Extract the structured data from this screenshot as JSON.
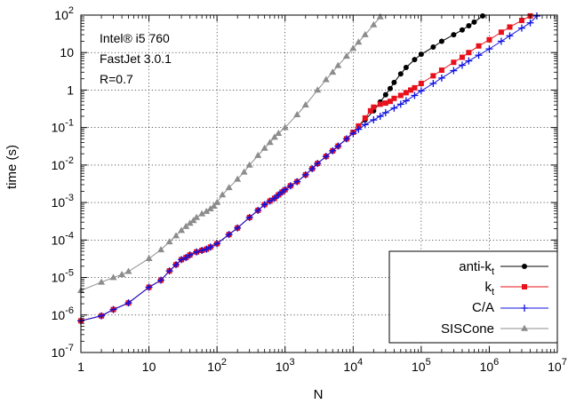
{
  "chart_data": {
    "type": "line",
    "xlabel": "N",
    "ylabel": "time (s)",
    "xscale": "log",
    "yscale": "log",
    "xlim": [
      1,
      10000000
    ],
    "ylim": [
      1e-07,
      100
    ],
    "grid": true,
    "legend_position": "bottom-right",
    "annotations": [
      "Intel® i5 760",
      "FastJet 3.0.1",
      "R=0.7"
    ],
    "x_ticks": [
      {
        "value": 1,
        "base": "1",
        "exp": ""
      },
      {
        "value": 10,
        "base": "10",
        "exp": ""
      },
      {
        "value": 100,
        "base": "10",
        "exp": "2"
      },
      {
        "value": 1000,
        "base": "10",
        "exp": "3"
      },
      {
        "value": 10000,
        "base": "10",
        "exp": "4"
      },
      {
        "value": 100000,
        "base": "10",
        "exp": "5"
      },
      {
        "value": 1000000,
        "base": "10",
        "exp": "6"
      },
      {
        "value": 10000000,
        "base": "10",
        "exp": "7"
      }
    ],
    "y_ticks": [
      {
        "value": 1e-07,
        "base": "10",
        "exp": "-7"
      },
      {
        "value": 1e-06,
        "base": "10",
        "exp": "-6"
      },
      {
        "value": 1e-05,
        "base": "10",
        "exp": "-5"
      },
      {
        "value": 0.0001,
        "base": "10",
        "exp": "-4"
      },
      {
        "value": 0.001,
        "base": "10",
        "exp": "-3"
      },
      {
        "value": 0.01,
        "base": "10",
        "exp": "-2"
      },
      {
        "value": 0.1,
        "base": "10",
        "exp": "-1"
      },
      {
        "value": 1,
        "base": "1",
        "exp": ""
      },
      {
        "value": 10,
        "base": "10",
        "exp": ""
      },
      {
        "value": 100,
        "base": "10",
        "exp": "2"
      }
    ],
    "series": [
      {
        "name": "anti-kt",
        "legend_main": "anti-k",
        "legend_sub": "t",
        "color": "#000000",
        "marker": "circle",
        "points": [
          [
            1,
            7e-07
          ],
          [
            2,
            9.5e-07
          ],
          [
            3,
            1.4e-06
          ],
          [
            5,
            2.1e-06
          ],
          [
            10,
            5.5e-06
          ],
          [
            15,
            8.5e-06
          ],
          [
            20,
            1.5e-05
          ],
          [
            25,
            2.2e-05
          ],
          [
            30,
            3e-05
          ],
          [
            35,
            3.4e-05
          ],
          [
            40,
            4e-05
          ],
          [
            50,
            4.8e-05
          ],
          [
            60,
            5.3e-05
          ],
          [
            70,
            5.7e-05
          ],
          [
            80,
            6.5e-05
          ],
          [
            100,
            8e-05
          ],
          [
            150,
            0.00014
          ],
          [
            200,
            0.00021
          ],
          [
            300,
            0.0004
          ],
          [
            400,
            0.00062
          ],
          [
            500,
            0.00088
          ],
          [
            600,
            0.0011
          ],
          [
            700,
            0.0013
          ],
          [
            800,
            0.0016
          ],
          [
            900,
            0.0019
          ],
          [
            1000,
            0.0022
          ],
          [
            1200,
            0.0028
          ],
          [
            1500,
            0.0036
          ],
          [
            2000,
            0.0055
          ],
          [
            2500,
            0.008
          ],
          [
            3000,
            0.011
          ],
          [
            4000,
            0.017
          ],
          [
            5000,
            0.024
          ],
          [
            6000,
            0.032
          ],
          [
            8000,
            0.05
          ],
          [
            10000,
            0.075
          ],
          [
            12000,
            0.11
          ],
          [
            15000,
            0.16
          ],
          [
            20000,
            0.28
          ],
          [
            25000,
            0.48
          ],
          [
            30000,
            0.75
          ],
          [
            35000,
            1.1
          ],
          [
            40000,
            1.6
          ],
          [
            50000,
            2.7
          ],
          [
            60000,
            4.0
          ],
          [
            80000,
            6.5
          ],
          [
            100000,
            9.0
          ],
          [
            150000,
            14
          ],
          [
            200000,
            20
          ],
          [
            300000,
            30
          ],
          [
            400000,
            40
          ],
          [
            500000,
            52
          ],
          [
            600000,
            65
          ],
          [
            800000,
            95
          ]
        ]
      },
      {
        "name": "kt",
        "legend_main": "k",
        "legend_sub": "t",
        "color": "#e8101a",
        "marker": "square",
        "points": [
          [
            1,
            7e-07
          ],
          [
            2,
            9.5e-07
          ],
          [
            3,
            1.4e-06
          ],
          [
            5,
            2.1e-06
          ],
          [
            10,
            5.5e-06
          ],
          [
            15,
            8.5e-06
          ],
          [
            20,
            1.5e-05
          ],
          [
            25,
            2.2e-05
          ],
          [
            30,
            3e-05
          ],
          [
            35,
            3.4e-05
          ],
          [
            40,
            4e-05
          ],
          [
            50,
            4.8e-05
          ],
          [
            60,
            5.3e-05
          ],
          [
            70,
            5.7e-05
          ],
          [
            80,
            6.5e-05
          ],
          [
            100,
            8e-05
          ],
          [
            150,
            0.00014
          ],
          [
            200,
            0.00021
          ],
          [
            300,
            0.0004
          ],
          [
            400,
            0.00062
          ],
          [
            500,
            0.00088
          ],
          [
            600,
            0.0011
          ],
          [
            700,
            0.0013
          ],
          [
            800,
            0.0016
          ],
          [
            900,
            0.0019
          ],
          [
            1000,
            0.0022
          ],
          [
            1200,
            0.0028
          ],
          [
            1500,
            0.0036
          ],
          [
            2000,
            0.0055
          ],
          [
            2500,
            0.008
          ],
          [
            3000,
            0.011
          ],
          [
            4000,
            0.017
          ],
          [
            5000,
            0.024
          ],
          [
            6000,
            0.032
          ],
          [
            8000,
            0.05
          ],
          [
            10000,
            0.075
          ],
          [
            12000,
            0.11
          ],
          [
            15000,
            0.18
          ],
          [
            18000,
            0.28
          ],
          [
            20000,
            0.35
          ],
          [
            25000,
            0.42
          ],
          [
            30000,
            0.45
          ],
          [
            35000,
            0.5
          ],
          [
            40000,
            0.6
          ],
          [
            50000,
            0.72
          ],
          [
            60000,
            0.85
          ],
          [
            70000,
            1.0
          ],
          [
            80000,
            1.15
          ],
          [
            100000,
            1.5
          ],
          [
            150000,
            2.4
          ],
          [
            200000,
            3.4
          ],
          [
            300000,
            5.5
          ],
          [
            400000,
            7.5
          ],
          [
            500000,
            10
          ],
          [
            700000,
            15
          ],
          [
            1000000,
            22
          ],
          [
            1500000,
            35
          ],
          [
            2000000,
            48
          ],
          [
            3000000,
            72
          ],
          [
            4000000,
            95
          ]
        ]
      },
      {
        "name": "C/A",
        "legend_main": "C/A",
        "legend_sub": "",
        "color": "#1010e0",
        "marker": "plus",
        "points": [
          [
            1,
            7e-07
          ],
          [
            2,
            9.5e-07
          ],
          [
            3,
            1.4e-06
          ],
          [
            5,
            2.1e-06
          ],
          [
            10,
            5.5e-06
          ],
          [
            15,
            8.5e-06
          ],
          [
            20,
            1.5e-05
          ],
          [
            25,
            2.2e-05
          ],
          [
            30,
            3e-05
          ],
          [
            35,
            3.4e-05
          ],
          [
            40,
            4e-05
          ],
          [
            50,
            4.8e-05
          ],
          [
            60,
            5.3e-05
          ],
          [
            70,
            5.7e-05
          ],
          [
            80,
            6.5e-05
          ],
          [
            100,
            8e-05
          ],
          [
            150,
            0.00014
          ],
          [
            200,
            0.00021
          ],
          [
            300,
            0.0004
          ],
          [
            400,
            0.00062
          ],
          [
            500,
            0.00088
          ],
          [
            600,
            0.0011
          ],
          [
            700,
            0.0013
          ],
          [
            800,
            0.0016
          ],
          [
            900,
            0.0019
          ],
          [
            1000,
            0.0022
          ],
          [
            1200,
            0.0028
          ],
          [
            1500,
            0.0036
          ],
          [
            2000,
            0.0055
          ],
          [
            2500,
            0.008
          ],
          [
            3000,
            0.011
          ],
          [
            4000,
            0.017
          ],
          [
            5000,
            0.024
          ],
          [
            6000,
            0.032
          ],
          [
            8000,
            0.05
          ],
          [
            10000,
            0.07
          ],
          [
            12000,
            0.09
          ],
          [
            15000,
            0.12
          ],
          [
            20000,
            0.16
          ],
          [
            25000,
            0.2
          ],
          [
            30000,
            0.25
          ],
          [
            40000,
            0.33
          ],
          [
            50000,
            0.42
          ],
          [
            60000,
            0.52
          ],
          [
            80000,
            0.72
          ],
          [
            100000,
            0.95
          ],
          [
            150000,
            1.5
          ],
          [
            200000,
            2.1
          ],
          [
            300000,
            3.3
          ],
          [
            400000,
            4.6
          ],
          [
            500000,
            6.0
          ],
          [
            700000,
            8.5
          ],
          [
            1000000,
            12.5
          ],
          [
            1500000,
            20
          ],
          [
            2000000,
            28
          ],
          [
            3000000,
            45
          ],
          [
            4000000,
            62
          ],
          [
            5000000,
            95
          ]
        ]
      },
      {
        "name": "SISCone",
        "legend_main": "SISCone",
        "legend_sub": "",
        "color": "#8c8c8c",
        "marker": "triangle",
        "points": [
          [
            1,
            4.5e-06
          ],
          [
            2,
            7.5e-06
          ],
          [
            3,
            1e-05
          ],
          [
            4,
            1.2e-05
          ],
          [
            5,
            1.45e-05
          ],
          [
            10,
            3.2e-05
          ],
          [
            15,
            5.5e-05
          ],
          [
            20,
            9e-05
          ],
          [
            25,
            0.00013
          ],
          [
            30,
            0.00018
          ],
          [
            35,
            0.00023
          ],
          [
            40,
            0.00028
          ],
          [
            45,
            0.00033
          ],
          [
            50,
            0.0004
          ],
          [
            60,
            0.0005
          ],
          [
            70,
            0.00058
          ],
          [
            80,
            0.00068
          ],
          [
            90,
            0.0008
          ],
          [
            100,
            0.001
          ],
          [
            120,
            0.0016
          ],
          [
            150,
            0.0025
          ],
          [
            200,
            0.0042
          ],
          [
            250,
            0.0065
          ],
          [
            300,
            0.01
          ],
          [
            400,
            0.018
          ],
          [
            500,
            0.028
          ],
          [
            600,
            0.04
          ],
          [
            700,
            0.055
          ],
          [
            800,
            0.07
          ],
          [
            1000,
            0.1
          ],
          [
            1500,
            0.22
          ],
          [
            2000,
            0.4
          ],
          [
            3000,
            1.0
          ],
          [
            4000,
            1.9
          ],
          [
            5000,
            3.0
          ],
          [
            6000,
            4.5
          ],
          [
            8000,
            8.0
          ],
          [
            10000,
            13
          ],
          [
            12000,
            19
          ],
          [
            15000,
            30
          ],
          [
            20000,
            55
          ],
          [
            25000,
            90
          ]
        ]
      }
    ]
  }
}
